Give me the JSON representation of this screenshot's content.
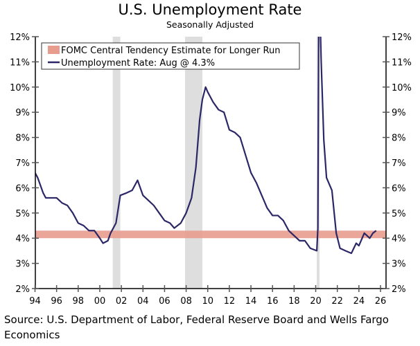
{
  "chart_data": {
    "type": "line",
    "title": "U.S. Unemployment Rate",
    "subtitle": "Seasonally Adjusted",
    "xlabel": "",
    "ylabel": "",
    "xlim": [
      1994,
      2026
    ],
    "ylim": [
      2,
      12
    ],
    "x_ticks": [
      1994,
      1996,
      1998,
      2000,
      2002,
      2004,
      2006,
      2008,
      2010,
      2012,
      2014,
      2016,
      2018,
      2020,
      2022,
      2024,
      2026
    ],
    "x_tick_labels": [
      "94",
      "96",
      "98",
      "00",
      "02",
      "04",
      "06",
      "08",
      "10",
      "12",
      "14",
      "16",
      "18",
      "20",
      "22",
      "24",
      "26"
    ],
    "y_ticks": [
      2,
      3,
      4,
      5,
      6,
      7,
      8,
      9,
      10,
      11,
      12
    ],
    "y_tick_labels": [
      "2%",
      "3%",
      "4%",
      "5%",
      "6%",
      "7%",
      "8%",
      "9%",
      "10%",
      "11%",
      "12%"
    ],
    "legend": {
      "placement": "top-left",
      "entries": [
        "FOMC Central Tendency Estimate for Longer Run",
        "Unemployment Rate: Aug @ 4.3%"
      ]
    },
    "band": {
      "name": "FOMC Central Tendency Estimate for Longer Run",
      "low": 4.0,
      "high": 4.3,
      "color": "#e89c8e"
    },
    "recessions": [
      [
        2001.2,
        2001.9
      ],
      [
        2007.9,
        2009.5
      ],
      [
        2020.1,
        2020.35
      ]
    ],
    "series": [
      {
        "name": "Unemployment Rate",
        "color": "#2b2766",
        "points": [
          [
            1994.0,
            6.6
          ],
          [
            1994.25,
            6.4
          ],
          [
            1994.5,
            6.1
          ],
          [
            1994.75,
            5.8
          ],
          [
            1995.0,
            5.6
          ],
          [
            1995.5,
            5.6
          ],
          [
            1996.0,
            5.6
          ],
          [
            1996.5,
            5.4
          ],
          [
            1997.0,
            5.3
          ],
          [
            1997.5,
            5.0
          ],
          [
            1998.0,
            4.6
          ],
          [
            1998.5,
            4.5
          ],
          [
            1999.0,
            4.3
          ],
          [
            1999.5,
            4.3
          ],
          [
            2000.0,
            4.0
          ],
          [
            2000.3,
            3.8
          ],
          [
            2000.75,
            3.9
          ],
          [
            2001.0,
            4.2
          ],
          [
            2001.5,
            4.6
          ],
          [
            2001.9,
            5.7
          ],
          [
            2002.5,
            5.8
          ],
          [
            2003.0,
            5.9
          ],
          [
            2003.5,
            6.3
          ],
          [
            2004.0,
            5.7
          ],
          [
            2004.5,
            5.5
          ],
          [
            2005.0,
            5.3
          ],
          [
            2005.5,
            5.0
          ],
          [
            2006.0,
            4.7
          ],
          [
            2006.5,
            4.6
          ],
          [
            2006.9,
            4.4
          ],
          [
            2007.5,
            4.6
          ],
          [
            2008.0,
            5.0
          ],
          [
            2008.5,
            5.6
          ],
          [
            2008.9,
            6.8
          ],
          [
            2009.25,
            8.7
          ],
          [
            2009.5,
            9.5
          ],
          [
            2009.8,
            10.0
          ],
          [
            2010.0,
            9.8
          ],
          [
            2010.5,
            9.4
          ],
          [
            2011.0,
            9.1
          ],
          [
            2011.5,
            9.0
          ],
          [
            2012.0,
            8.3
          ],
          [
            2012.5,
            8.2
          ],
          [
            2013.0,
            8.0
          ],
          [
            2013.5,
            7.3
          ],
          [
            2014.0,
            6.6
          ],
          [
            2014.5,
            6.2
          ],
          [
            2015.0,
            5.7
          ],
          [
            2015.5,
            5.2
          ],
          [
            2016.0,
            4.9
          ],
          [
            2016.5,
            4.9
          ],
          [
            2017.0,
            4.7
          ],
          [
            2017.5,
            4.3
          ],
          [
            2018.0,
            4.1
          ],
          [
            2018.5,
            3.9
          ],
          [
            2019.0,
            3.9
          ],
          [
            2019.5,
            3.6
          ],
          [
            2020.1,
            3.5
          ],
          [
            2020.2,
            4.4
          ],
          [
            2020.3,
            14.8
          ],
          [
            2020.5,
            11.1
          ],
          [
            2020.75,
            7.9
          ],
          [
            2021.0,
            6.4
          ],
          [
            2021.5,
            5.9
          ],
          [
            2021.9,
            4.2
          ],
          [
            2022.25,
            3.6
          ],
          [
            2022.75,
            3.5
          ],
          [
            2023.3,
            3.4
          ],
          [
            2023.75,
            3.8
          ],
          [
            2024.0,
            3.7
          ],
          [
            2024.5,
            4.2
          ],
          [
            2025.0,
            4.0
          ],
          [
            2025.3,
            4.2
          ],
          [
            2025.6,
            4.3
          ]
        ]
      }
    ]
  },
  "source": "Source: U.S. Department of Labor, Federal Reserve Board and Wells Fargo Economics"
}
